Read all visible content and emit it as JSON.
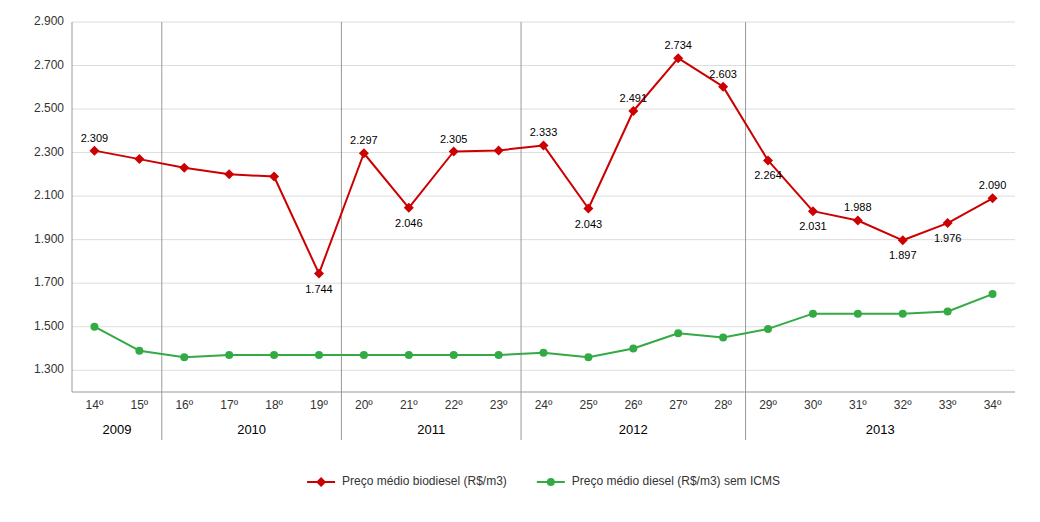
{
  "chart_data": {
    "type": "line",
    "categories": [
      "14º",
      "15º",
      "16º",
      "17º",
      "18º",
      "19º",
      "20º",
      "21º",
      "22º",
      "23º",
      "24º",
      "25º",
      "26º",
      "27º",
      "28º",
      "29º",
      "30º",
      "31º",
      "32º",
      "33º",
      "34º"
    ],
    "series": [
      {
        "name": "Preço médio biodiesel (R$/m3)",
        "color": "#CC0000",
        "marker": "diamond",
        "data_labels": true,
        "values": [
          2.309,
          2.27,
          2.23,
          2.2,
          2.19,
          1.744,
          2.297,
          2.046,
          2.305,
          2.31,
          2.333,
          2.043,
          2.491,
          2.734,
          2.603,
          2.264,
          2.031,
          1.988,
          1.897,
          1.976,
          2.09
        ],
        "value_labels": [
          "2.309",
          null,
          null,
          null,
          null,
          "1.744",
          "2.297",
          "2.046",
          "2.305",
          null,
          "2.333",
          "2.043",
          "2.491",
          "2.734",
          "2.603",
          "2.264",
          "2.031",
          "1.988",
          "1.897",
          "1.976",
          "2.090"
        ]
      },
      {
        "name": "Preço médio diesel (R$/m3) sem ICMS",
        "color": "#33AA44",
        "marker": "circle",
        "values": [
          1.5,
          1.39,
          1.36,
          1.37,
          1.37,
          1.37,
          1.37,
          1.37,
          1.37,
          1.37,
          1.38,
          1.36,
          1.4,
          1.47,
          1.45,
          1.49,
          1.56,
          1.56,
          1.56,
          1.57,
          1.65
        ]
      }
    ],
    "ylim": [
      1.2,
      2.9
    ],
    "yticks": [
      {
        "value": 1.3,
        "label": "1.300"
      },
      {
        "value": 1.5,
        "label": "1.500"
      },
      {
        "value": 1.7,
        "label": "1.700"
      },
      {
        "value": 1.9,
        "label": "1.900"
      },
      {
        "value": 2.1,
        "label": "2.100"
      },
      {
        "value": 2.3,
        "label": "2.300"
      },
      {
        "value": 2.5,
        "label": "2.500"
      },
      {
        "value": 2.7,
        "label": "2.700"
      },
      {
        "value": 2.9,
        "label": "2.900"
      }
    ],
    "grid": true,
    "legend": "bottom",
    "annotations": [
      {
        "text": "2009",
        "from": "14º",
        "to": "15º"
      },
      {
        "text": "2010",
        "from": "16º",
        "to": "19º"
      },
      {
        "text": "2011",
        "from": "20º",
        "to": "23º"
      },
      {
        "text": "2012",
        "from": "24º",
        "to": "28º"
      },
      {
        "text": "2013",
        "from": "29º",
        "to": "34º"
      }
    ]
  }
}
